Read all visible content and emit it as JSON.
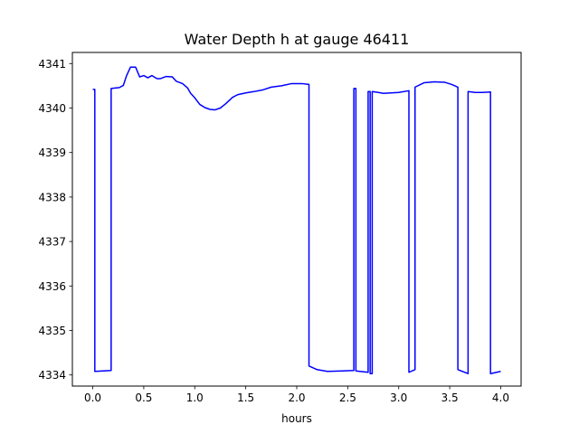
{
  "chart_data": {
    "type": "line",
    "title": "Water Depth h at gauge 46411",
    "xlabel": "hours",
    "ylabel": "",
    "xlim": [
      -0.2,
      4.2
    ],
    "ylim": [
      4333.75,
      4341.25
    ],
    "xticks": [
      0.0,
      0.5,
      1.0,
      1.5,
      2.0,
      2.5,
      3.0,
      3.5,
      4.0
    ],
    "xtick_labels": [
      "0.0",
      "0.5",
      "1.0",
      "1.5",
      "2.0",
      "2.5",
      "3.0",
      "3.5",
      "4.0"
    ],
    "yticks": [
      4334,
      4335,
      4336,
      4337,
      4338,
      4339,
      4340,
      4341
    ],
    "ytick_labels": [
      "4334",
      "4335",
      "4336",
      "4337",
      "4338",
      "4339",
      "4340",
      "4341"
    ],
    "grid": false,
    "series": [
      {
        "color": "#0000ff",
        "points": [
          [
            0.0,
            4340.42
          ],
          [
            0.02,
            4340.42
          ],
          [
            0.02,
            4334.08
          ],
          [
            0.18,
            4334.1
          ],
          [
            0.18,
            4340.44
          ],
          [
            0.26,
            4340.46
          ],
          [
            0.3,
            4340.51
          ],
          [
            0.33,
            4340.72
          ],
          [
            0.37,
            4340.92
          ],
          [
            0.42,
            4340.92
          ],
          [
            0.46,
            4340.7
          ],
          [
            0.5,
            4340.73
          ],
          [
            0.54,
            4340.68
          ],
          [
            0.58,
            4340.73
          ],
          [
            0.63,
            4340.66
          ],
          [
            0.66,
            4340.66
          ],
          [
            0.72,
            4340.71
          ],
          [
            0.78,
            4340.7
          ],
          [
            0.82,
            4340.6
          ],
          [
            0.88,
            4340.55
          ],
          [
            0.93,
            4340.45
          ],
          [
            0.96,
            4340.33
          ],
          [
            1.0,
            4340.23
          ],
          [
            1.05,
            4340.08
          ],
          [
            1.1,
            4340.01
          ],
          [
            1.15,
            4339.97
          ],
          [
            1.2,
            4339.96
          ],
          [
            1.25,
            4340.0
          ],
          [
            1.3,
            4340.09
          ],
          [
            1.37,
            4340.24
          ],
          [
            1.42,
            4340.3
          ],
          [
            1.5,
            4340.34
          ],
          [
            1.58,
            4340.37
          ],
          [
            1.67,
            4340.41
          ],
          [
            1.75,
            4340.47
          ],
          [
            1.85,
            4340.5
          ],
          [
            1.95,
            4340.55
          ],
          [
            2.05,
            4340.55
          ],
          [
            2.12,
            4340.53
          ],
          [
            2.12,
            4334.2
          ],
          [
            2.2,
            4334.12
          ],
          [
            2.3,
            4334.08
          ],
          [
            2.45,
            4334.09
          ],
          [
            2.56,
            4334.1
          ],
          [
            2.56,
            4340.44
          ],
          [
            2.58,
            4340.44
          ],
          [
            2.58,
            4334.09
          ],
          [
            2.7,
            4334.06
          ],
          [
            2.7,
            4340.37
          ],
          [
            2.72,
            4340.37
          ],
          [
            2.72,
            4334.03
          ],
          [
            2.74,
            4334.03
          ],
          [
            2.74,
            4340.37
          ],
          [
            2.8,
            4340.35
          ],
          [
            2.85,
            4340.33
          ],
          [
            3.0,
            4340.35
          ],
          [
            3.1,
            4340.39
          ],
          [
            3.1,
            4334.06
          ],
          [
            3.16,
            4334.12
          ],
          [
            3.16,
            4340.47
          ],
          [
            3.25,
            4340.57
          ],
          [
            3.35,
            4340.59
          ],
          [
            3.45,
            4340.58
          ],
          [
            3.52,
            4340.53
          ],
          [
            3.58,
            4340.47
          ],
          [
            3.58,
            4334.12
          ],
          [
            3.68,
            4334.03
          ],
          [
            3.68,
            4340.37
          ],
          [
            3.75,
            4340.35
          ],
          [
            3.82,
            4340.35
          ],
          [
            3.9,
            4340.36
          ],
          [
            3.9,
            4334.03
          ],
          [
            4.0,
            4334.08
          ]
        ]
      }
    ]
  }
}
